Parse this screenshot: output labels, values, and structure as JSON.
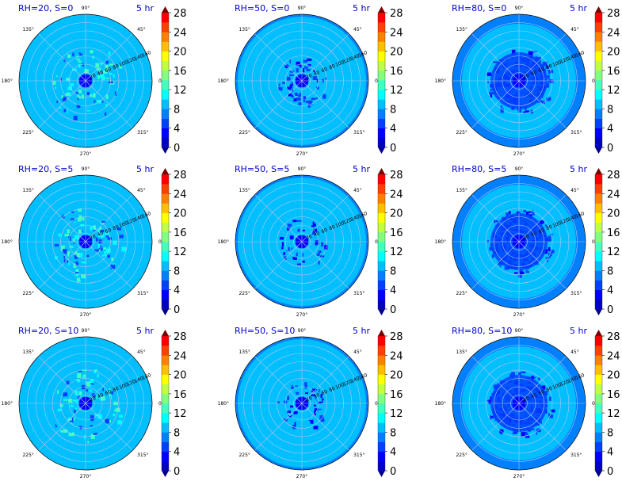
{
  "figure": {
    "colorbar": {
      "ticks": [
        "0",
        "4",
        "8",
        "12",
        "16",
        "20",
        "24",
        "28"
      ],
      "levels": [
        0,
        2,
        4,
        6,
        8,
        10,
        12,
        14,
        16,
        18,
        20,
        22,
        24,
        26,
        28
      ],
      "colors": [
        "#00008f",
        "#0000c8",
        "#0000ff",
        "#0040ff",
        "#0080ff",
        "#00bfff",
        "#00ffff",
        "#40ffbf",
        "#80ff80",
        "#bfff40",
        "#ffff00",
        "#ffbf00",
        "#ff8000",
        "#ff4000",
        "#ff0000",
        "#c00000",
        "#800000"
      ],
      "under_color": "#00008f",
      "over_color": "#800000"
    },
    "angle_labels": [
      "0°",
      "45°",
      "90°",
      "135°",
      "180°",
      "225°",
      "270°",
      "315°"
    ],
    "radial_labels": [
      "20",
      "40",
      "60",
      "80",
      "100",
      "120",
      "140",
      "160"
    ],
    "time_label": "5 hr",
    "title_color": "#0000cc",
    "background_color": "#0080ff",
    "inner_color": "#1e3cf0",
    "edge_color": "#1030e8"
  },
  "chart_data": [
    {
      "type": "polar contour",
      "title": "RH=20, S=0",
      "time": "5 hr",
      "rh": 20,
      "s": 0,
      "r_max": 160,
      "clim": [
        0,
        28
      ],
      "dominant_value": 9,
      "core_radius": 16,
      "rim_value": null
    },
    {
      "type": "polar contour",
      "title": "RH=50, S=0",
      "time": "5 hr",
      "rh": 50,
      "s": 0,
      "r_max": 160,
      "clim": [
        0,
        28
      ],
      "dominant_value": 9,
      "core_radius": 16,
      "rim_value": 6
    },
    {
      "type": "polar contour",
      "title": "RH=80, S=0",
      "time": "5 hr",
      "rh": 80,
      "s": 0,
      "r_max": 160,
      "clim": [
        0,
        28
      ],
      "dominant_value": 9,
      "core_radius": 16,
      "rim_value": 6
    },
    {
      "type": "polar contour",
      "title": "RH=20, S=5",
      "time": "5 hr",
      "rh": 20,
      "s": 5,
      "r_max": 160,
      "clim": [
        0,
        28
      ],
      "dominant_value": 9,
      "core_radius": 16,
      "rim_value": null
    },
    {
      "type": "polar contour",
      "title": "RH=50, S=5",
      "time": "5 hr",
      "rh": 50,
      "s": 5,
      "r_max": 160,
      "clim": [
        0,
        28
      ],
      "dominant_value": 9,
      "core_radius": 16,
      "rim_value": 6
    },
    {
      "type": "polar contour",
      "title": "RH=80, S=5",
      "time": "5 hr",
      "rh": 80,
      "s": 5,
      "r_max": 160,
      "clim": [
        0,
        28
      ],
      "dominant_value": 9,
      "core_radius": 16,
      "rim_value": 6
    },
    {
      "type": "polar contour",
      "title": "RH=20, S=10",
      "time": "5 hr",
      "rh": 20,
      "s": 10,
      "r_max": 160,
      "clim": [
        0,
        28
      ],
      "dominant_value": 9,
      "core_radius": 16,
      "rim_value": null
    },
    {
      "type": "polar contour",
      "title": "RH=50, S=10",
      "time": "5 hr",
      "rh": 50,
      "s": 10,
      "r_max": 160,
      "clim": [
        0,
        28
      ],
      "dominant_value": 9,
      "core_radius": 16,
      "rim_value": 6
    },
    {
      "type": "polar contour",
      "title": "RH=80, S=10",
      "time": "5 hr",
      "rh": 80,
      "s": 10,
      "r_max": 160,
      "clim": [
        0,
        28
      ],
      "dominant_value": 9,
      "core_radius": 16,
      "rim_value": 6
    }
  ]
}
